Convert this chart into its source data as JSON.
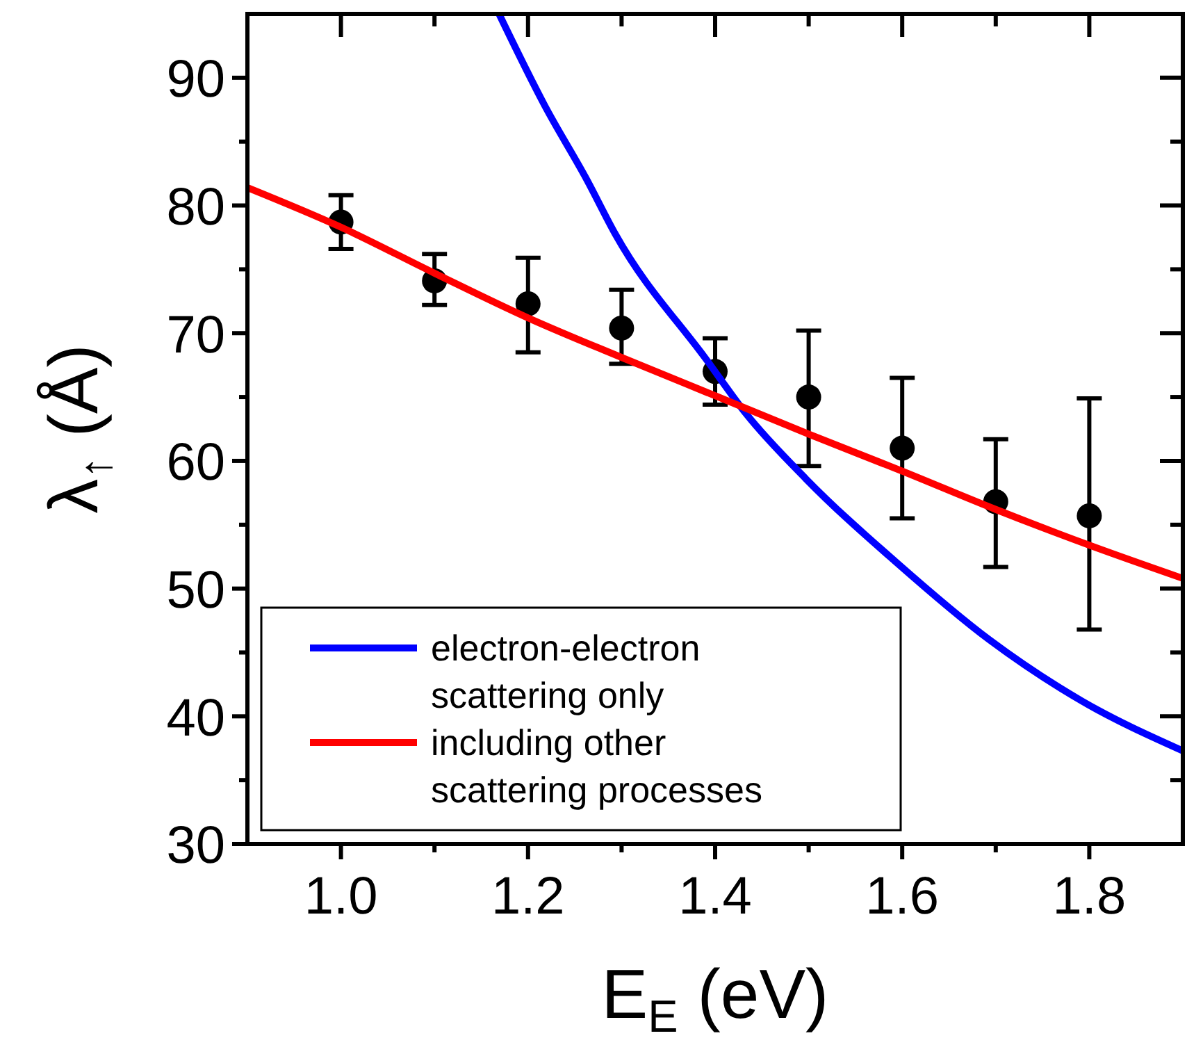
{
  "chart_data": {
    "type": "line",
    "xlabel": "E$_{E}$ (eV)",
    "ylabel": "λ$_{↑}$ (Å)",
    "xlim": [
      0.9,
      1.9
    ],
    "ylim": [
      30,
      95
    ],
    "xticks": [
      {
        "value": 1.0,
        "label": "1.0"
      },
      {
        "value": 1.1,
        "label": null
      },
      {
        "value": 1.2,
        "label": "1.2"
      },
      {
        "value": 1.3,
        "label": null
      },
      {
        "value": 1.4,
        "label": "1.4"
      },
      {
        "value": 1.5,
        "label": null
      },
      {
        "value": 1.6,
        "label": "1.6"
      },
      {
        "value": 1.7,
        "label": null
      },
      {
        "value": 1.8,
        "label": "1.8"
      }
    ],
    "yticks": [
      30,
      {
        "value": 35,
        "label": null
      },
      40,
      {
        "value": 45,
        "label": null
      },
      50,
      {
        "value": 55,
        "label": null
      },
      60,
      {
        "value": 65,
        "label": null
      },
      70,
      {
        "value": 75,
        "label": null
      },
      80,
      {
        "value": 85,
        "label": null
      },
      90
    ],
    "grid": false,
    "legend": "bottom left",
    "series": [
      {
        "type": "scatter",
        "color": "#000000",
        "marker": "circle",
        "x": [
          1.0,
          1.1,
          1.2,
          1.3,
          1.4,
          1.5,
          1.6,
          1.7,
          1.8
        ],
        "values": [
          78.7,
          74.1,
          72.3,
          70.4,
          67.0,
          65.0,
          61.0,
          56.8,
          55.7
        ],
        "errors": [
          [
            76.6,
            80.8
          ],
          [
            72.2,
            76.2
          ],
          [
            68.5,
            75.9
          ],
          [
            67.6,
            73.4
          ],
          [
            64.4,
            69.6
          ],
          [
            59.6,
            70.2
          ],
          [
            55.5,
            66.5
          ],
          [
            51.7,
            61.7
          ],
          [
            46.8,
            64.9
          ]
        ]
      },
      {
        "name": "electron-electron scattering only",
        "color": "#0000ff",
        "marker": "none",
        "line_style": "solid",
        "x": [
          1.169,
          1.218,
          1.263,
          1.293,
          1.392,
          1.433,
          1.497,
          1.593,
          1.693,
          1.792,
          1.9
        ],
        "values": [
          95,
          87.8,
          82.0,
          77.8,
          67.8,
          63.7,
          58.6,
          52.1,
          46.0,
          41.2,
          37.3
        ]
      },
      {
        "name": "including other scattering processes",
        "color": "#ff0000",
        "marker": "none",
        "line_style": "solid",
        "x": [
          0.9,
          1.0,
          1.1,
          1.2,
          1.3,
          1.4,
          1.5,
          1.6,
          1.7,
          1.8,
          1.9
        ],
        "values": [
          81.4,
          78.3,
          74.7,
          71.2,
          68.1,
          65.1,
          62.1,
          59.2,
          56.2,
          53.4,
          50.8
        ]
      }
    ]
  }
}
